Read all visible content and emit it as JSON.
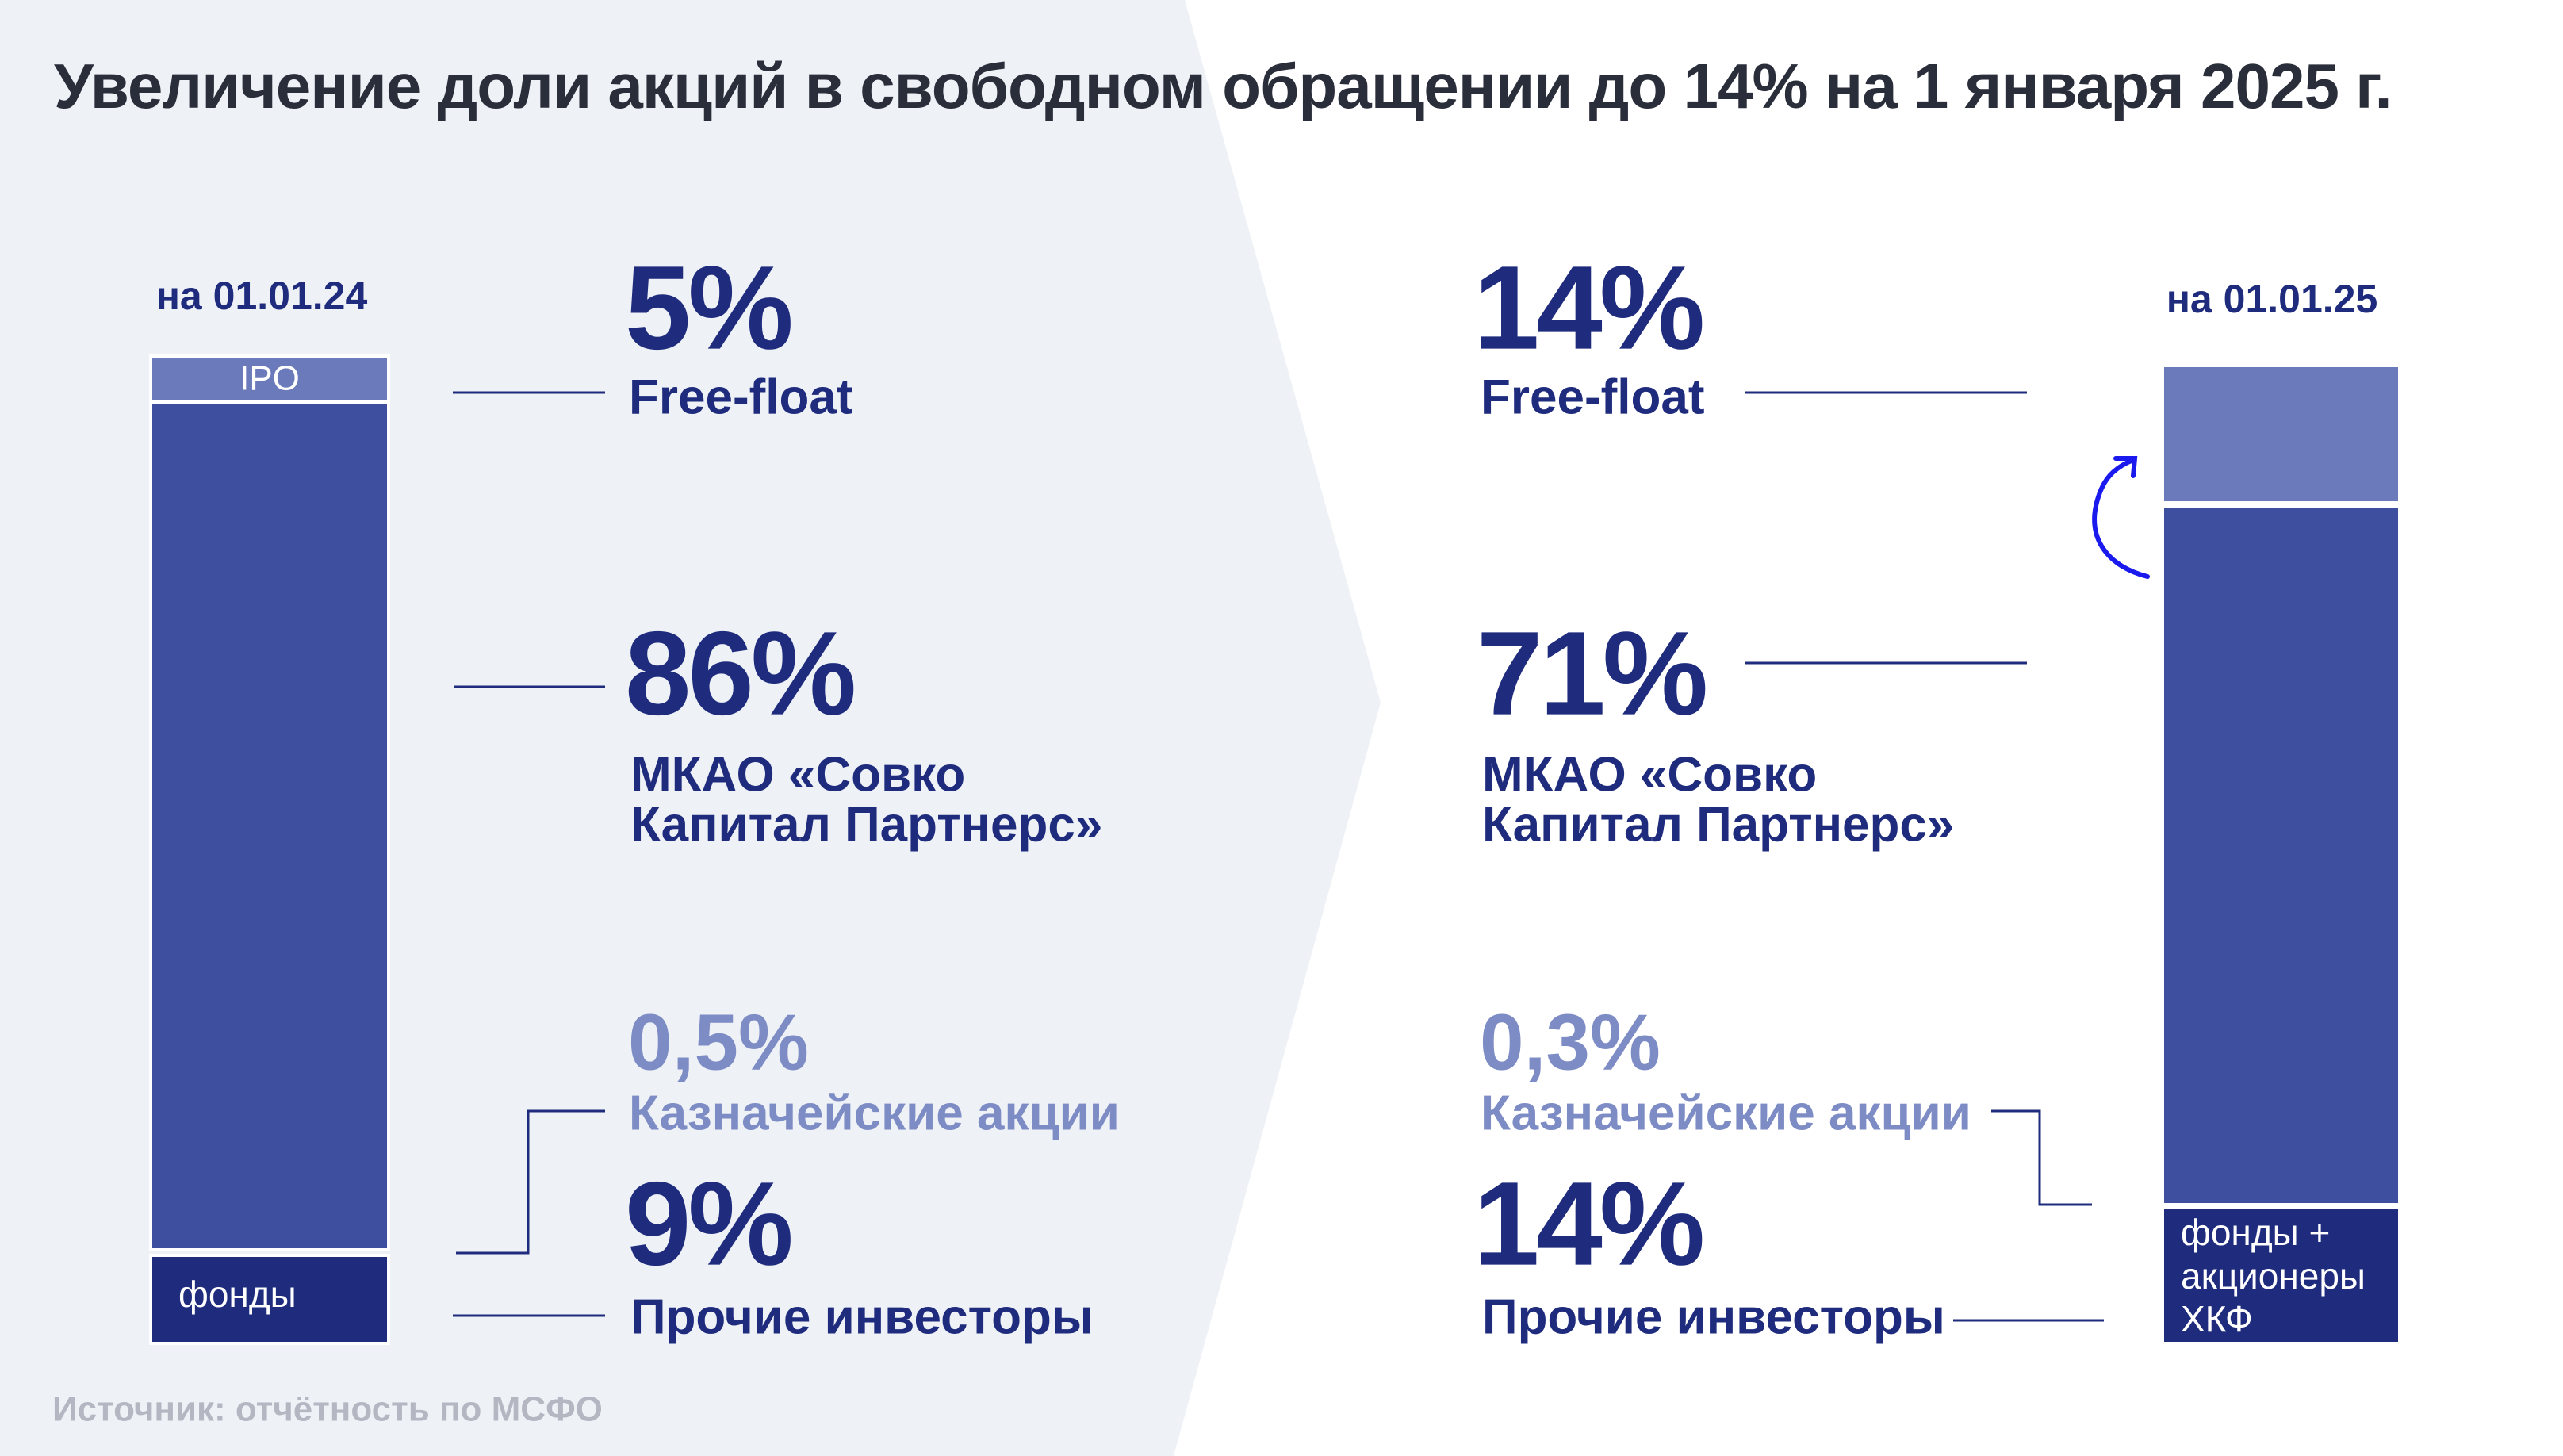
{
  "title": "Увеличение доли акций в свободном обращении до 14% на 1 января 2025 г.",
  "source": "Источник: отчётность по МСФО",
  "left": {
    "date": "на 01.01.24",
    "bar_labels": [
      "IPO",
      "фонды"
    ],
    "items": [
      {
        "value": "5%",
        "label": [
          "Free-float"
        ]
      },
      {
        "value": "86%",
        "label": [
          "МКАО «Совко",
          "Капитал Партнерс»"
        ]
      },
      {
        "value": "0,5%",
        "label": [
          "Казначейские акции"
        ]
      },
      {
        "value": "9%",
        "label": [
          "Прочие инвесторы"
        ]
      }
    ]
  },
  "right": {
    "date": "на 01.01.25",
    "bar_labels": [
      "фонды +",
      "акционеры",
      "ХКФ"
    ],
    "items": [
      {
        "value": "14%",
        "label": [
          "Free-float"
        ]
      },
      {
        "value": "71%",
        "label": [
          "МКАО «Совко",
          "Капитал Партнерс»"
        ]
      },
      {
        "value": "0,3%",
        "label": [
          "Казначейские акции"
        ]
      },
      {
        "value": "14%",
        "label": [
          "Прочие инвесторы"
        ]
      }
    ]
  }
}
